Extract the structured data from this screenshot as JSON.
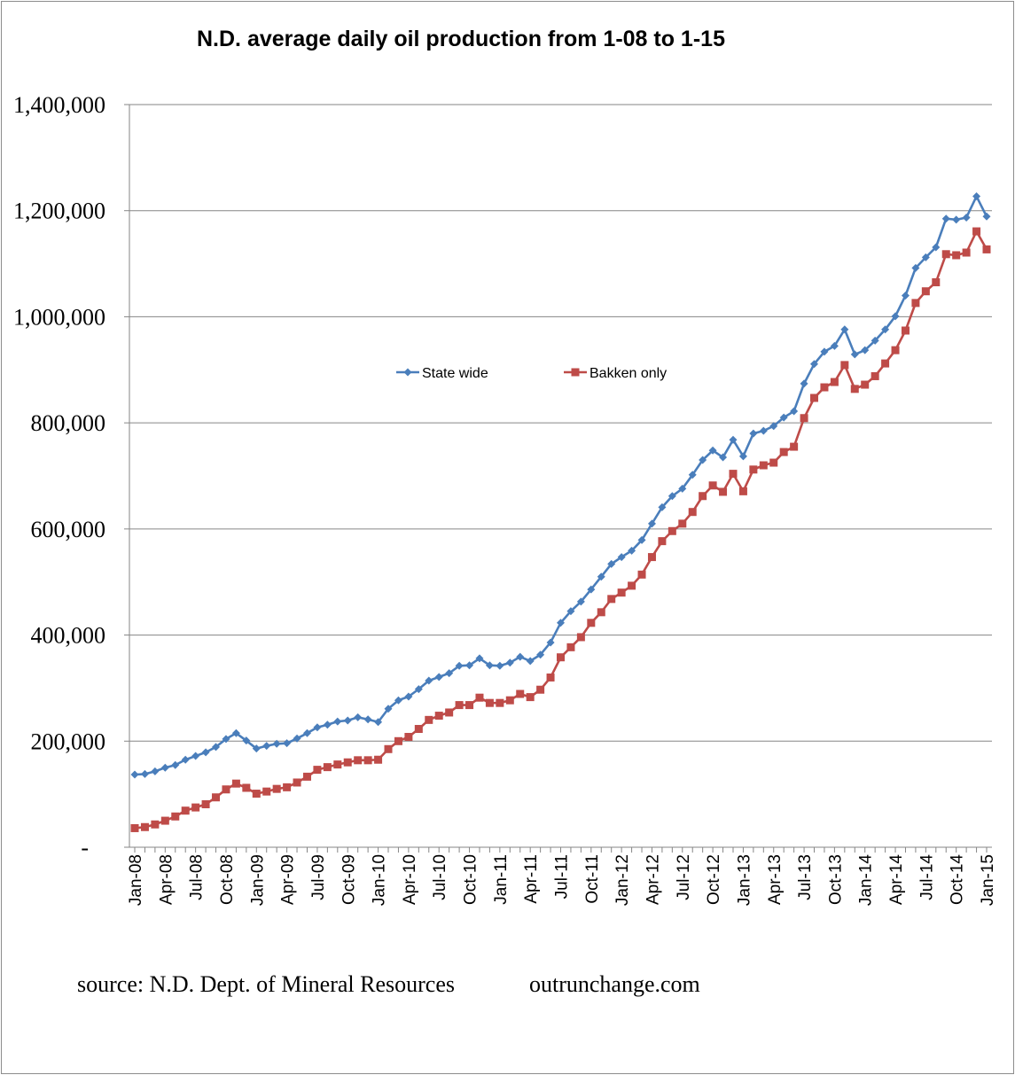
{
  "chart_data": {
    "type": "line",
    "title": "N.D. average daily oil production from 1-08 to 1-15",
    "ylim": [
      0,
      1400000
    ],
    "y_ticks": [
      "-",
      "200,000",
      "400,000",
      "600,000",
      "800,000",
      "1,000,000",
      "1,200,000",
      "1,400,000"
    ],
    "x_ticks": [
      "Jan-08",
      "Apr-08",
      "Jul-08",
      "Oct-08",
      "Jan-09",
      "Apr-09",
      "Jul-09",
      "Oct-09",
      "Jan-10",
      "Apr-10",
      "Jul-10",
      "Oct-10",
      "Jan-11",
      "Apr-11",
      "Jul-11",
      "Oct-11",
      "Jan-12",
      "Apr-12",
      "Jul-12",
      "Oct-12",
      "Jan-13",
      "Apr-13",
      "Jul-13",
      "Oct-13",
      "Jan-14",
      "Apr-14",
      "Jul-14",
      "Oct-14",
      "Jan-15"
    ],
    "x": [
      "Jan-08",
      "Feb-08",
      "Mar-08",
      "Apr-08",
      "May-08",
      "Jun-08",
      "Jul-08",
      "Aug-08",
      "Sep-08",
      "Oct-08",
      "Nov-08",
      "Dec-08",
      "Jan-09",
      "Feb-09",
      "Mar-09",
      "Apr-09",
      "May-09",
      "Jun-09",
      "Jul-09",
      "Aug-09",
      "Sep-09",
      "Oct-09",
      "Nov-09",
      "Dec-09",
      "Jan-10",
      "Feb-10",
      "Mar-10",
      "Apr-10",
      "May-10",
      "Jun-10",
      "Jul-10",
      "Aug-10",
      "Sep-10",
      "Oct-10",
      "Nov-10",
      "Dec-10",
      "Jan-11",
      "Feb-11",
      "Mar-11",
      "Apr-11",
      "May-11",
      "Jun-11",
      "Jul-11",
      "Aug-11",
      "Sep-11",
      "Oct-11",
      "Nov-11",
      "Dec-11",
      "Jan-12",
      "Feb-12",
      "Mar-12",
      "Apr-12",
      "May-12",
      "Jun-12",
      "Jul-12",
      "Aug-12",
      "Sep-12",
      "Oct-12",
      "Nov-12",
      "Dec-12",
      "Jan-13",
      "Feb-13",
      "Mar-13",
      "Apr-13",
      "May-13",
      "Jun-13",
      "Jul-13",
      "Aug-13",
      "Sep-13",
      "Oct-13",
      "Nov-13",
      "Dec-13",
      "Jan-14",
      "Feb-14",
      "Mar-14",
      "Apr-14",
      "May-14",
      "Jun-14",
      "Jul-14",
      "Aug-14",
      "Sep-14",
      "Oct-14",
      "Nov-14",
      "Dec-14",
      "Jan-15"
    ],
    "series": [
      {
        "name": "State wide",
        "color": "#4a7ebb",
        "marker": "diamond",
        "values": [
          137000,
          138000,
          143000,
          150000,
          155000,
          165000,
          172000,
          179000,
          189000,
          204000,
          215000,
          201000,
          186000,
          191000,
          195000,
          196000,
          205000,
          215000,
          226000,
          231000,
          237000,
          239000,
          245000,
          241000,
          236000,
          261000,
          277000,
          284000,
          298000,
          314000,
          321000,
          328000,
          342000,
          343000,
          356000,
          343000,
          342000,
          348000,
          359000,
          351000,
          363000,
          386000,
          423000,
          445000,
          463000,
          486000,
          510000,
          534000,
          547000,
          559000,
          579000,
          610000,
          641000,
          662000,
          676000,
          702000,
          730000,
          748000,
          735000,
          768000,
          737000,
          780000,
          785000,
          794000,
          810000,
          822000,
          874000,
          911000,
          934000,
          945000,
          976000,
          929000,
          937000,
          955000,
          976000,
          1001000,
          1040000,
          1092000,
          1112000,
          1131000,
          1185000,
          1183000,
          1187000,
          1227000,
          1189000
        ]
      },
      {
        "name": "Bakken only",
        "color": "#be4b48",
        "marker": "square",
        "values": [
          36000,
          38000,
          43000,
          50000,
          58000,
          69000,
          75000,
          81000,
          94000,
          109000,
          120000,
          112000,
          101000,
          105000,
          110000,
          113000,
          122000,
          133000,
          146000,
          151000,
          156000,
          160000,
          164000,
          164000,
          165000,
          185000,
          200000,
          208000,
          223000,
          240000,
          248000,
          254000,
          268000,
          268000,
          282000,
          272000,
          272000,
          277000,
          289000,
          283000,
          297000,
          320000,
          358000,
          377000,
          396000,
          423000,
          443000,
          468000,
          480000,
          493000,
          514000,
          547000,
          577000,
          596000,
          610000,
          632000,
          662000,
          682000,
          670000,
          704000,
          671000,
          712000,
          720000,
          725000,
          745000,
          755000,
          809000,
          847000,
          867000,
          877000,
          909000,
          864000,
          872000,
          888000,
          912000,
          937000,
          974000,
          1026000,
          1048000,
          1065000,
          1118000,
          1116000,
          1121000,
          1161000,
          1127000
        ]
      }
    ],
    "legend_position": "center",
    "grid": "horizontal"
  },
  "footer": {
    "source": "source: N.D. Dept. of Mineral Resources",
    "site": "outrunchange.com"
  }
}
